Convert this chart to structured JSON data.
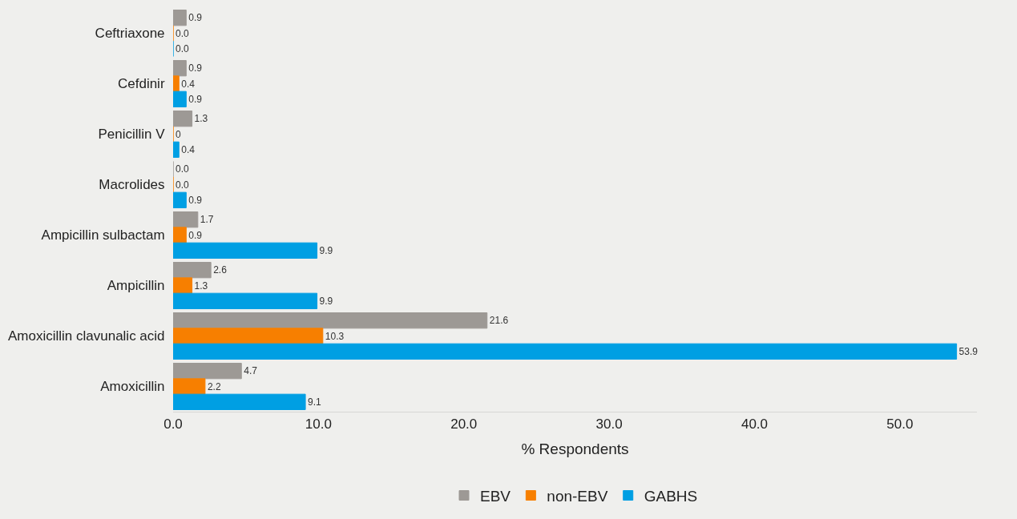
{
  "chart_data": {
    "type": "bar",
    "orientation": "horizontal",
    "categories": [
      "Ceftriaxone",
      "Cefdinir",
      "Penicillin V",
      "Macrolides",
      "Ampicillin sulbactam",
      "Ampicillin",
      "Amoxicillin clavunalic acid",
      "Amoxicillin"
    ],
    "series": [
      {
        "name": "EBV",
        "color": "#9d9995",
        "values": [
          0.9,
          0.9,
          1.3,
          0.0,
          1.7,
          2.6,
          21.6,
          4.7
        ],
        "value_labels": [
          "0.9",
          "0.9",
          "1.3",
          "0.0",
          "1.7",
          "2.6",
          "21.6",
          "4.7"
        ]
      },
      {
        "name": "non-EBV",
        "color": "#f77f00",
        "values": [
          0.0,
          0.4,
          0,
          0.0,
          0.9,
          1.3,
          10.3,
          2.2
        ],
        "value_labels": [
          "0.0",
          "0.4",
          "0",
          "0.0",
          "0.9",
          "1.3",
          "10.3",
          "2.2"
        ]
      },
      {
        "name": "GABHS",
        "color": "#009fe3",
        "values": [
          0.0,
          0.9,
          0.4,
          0.9,
          9.9,
          9.9,
          53.9,
          9.1
        ],
        "value_labels": [
          "0.0",
          "0.9",
          "0.4",
          "0.9",
          "9.9",
          "9.9",
          "53.9",
          "9.1"
        ]
      }
    ],
    "xlabel": "% Respondents",
    "xlim": [
      0,
      55.3
    ],
    "xticks": [
      {
        "value": 0,
        "label": "0.0"
      },
      {
        "value": 10,
        "label": "10.0"
      },
      {
        "value": 20,
        "label": "20.0"
      },
      {
        "value": 30,
        "label": "30.0"
      },
      {
        "value": 40,
        "label": "40.0"
      },
      {
        "value": 50,
        "label": "50.0"
      }
    ],
    "grid": false,
    "legend": "bottom"
  }
}
